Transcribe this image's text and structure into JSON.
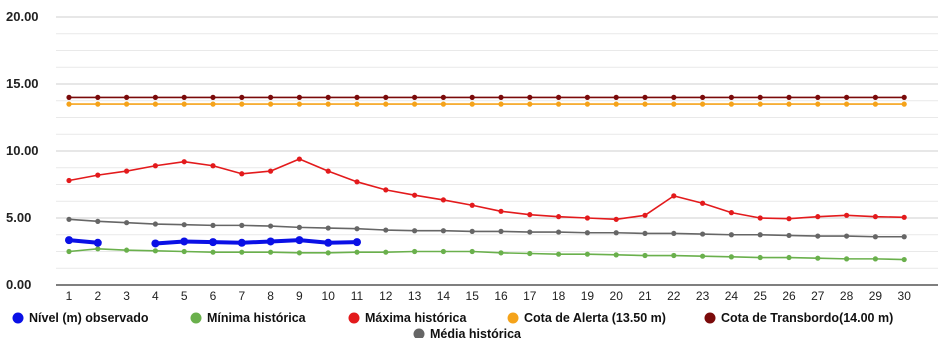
{
  "chart_data": {
    "type": "line",
    "title": "",
    "xlabel": "",
    "ylabel": "",
    "ylim": [
      0,
      20
    ],
    "yticks": [
      "0.00",
      "5.00",
      "10.00",
      "15.00",
      "20.00"
    ],
    "x": [
      1,
      2,
      3,
      4,
      5,
      6,
      7,
      8,
      9,
      10,
      11,
      12,
      13,
      14,
      15,
      16,
      17,
      18,
      19,
      20,
      21,
      22,
      23,
      24,
      25,
      26,
      27,
      28,
      29,
      30
    ],
    "grid": true,
    "legend_position": "bottom",
    "series": [
      {
        "name": "Nível (m) observado",
        "color": "#0a10e6",
        "values": [
          3.35,
          3.15,
          null,
          3.1,
          3.25,
          3.2,
          3.15,
          3.25,
          3.35,
          3.15,
          3.2,
          null,
          null,
          null,
          null,
          null,
          null,
          null,
          null,
          null,
          null,
          null,
          null,
          null,
          null,
          null,
          null,
          null,
          null,
          null
        ]
      },
      {
        "name": "Mínima histórica",
        "color": "#6ab04c",
        "values": [
          2.5,
          2.7,
          2.6,
          2.55,
          2.5,
          2.45,
          2.45,
          2.45,
          2.4,
          2.4,
          2.45,
          2.45,
          2.5,
          2.5,
          2.5,
          2.4,
          2.35,
          2.3,
          2.3,
          2.25,
          2.2,
          2.2,
          2.15,
          2.1,
          2.05,
          2.05,
          2.0,
          1.95,
          1.95,
          1.9
        ]
      },
      {
        "name": "Máxima histórica",
        "color": "#e31a1c",
        "values": [
          7.8,
          8.2,
          8.5,
          8.9,
          9.2,
          8.9,
          8.3,
          8.5,
          9.4,
          8.5,
          7.7,
          7.1,
          6.7,
          6.35,
          5.95,
          5.5,
          5.25,
          5.1,
          5.0,
          4.9,
          5.2,
          6.65,
          6.1,
          5.4,
          5.0,
          4.95,
          5.1,
          5.2,
          5.1,
          5.05
        ]
      },
      {
        "name": "Cota de Alerta (13.50 m)",
        "color": "#f5a31a",
        "values": [
          13.5,
          13.5,
          13.5,
          13.5,
          13.5,
          13.5,
          13.5,
          13.5,
          13.5,
          13.5,
          13.5,
          13.5,
          13.5,
          13.5,
          13.5,
          13.5,
          13.5,
          13.5,
          13.5,
          13.5,
          13.5,
          13.5,
          13.5,
          13.5,
          13.5,
          13.5,
          13.5,
          13.5,
          13.5,
          13.5
        ]
      },
      {
        "name": "Cota de Transbordo(14.00 m)",
        "color": "#7a0a0a",
        "values": [
          14,
          14,
          14,
          14,
          14,
          14,
          14,
          14,
          14,
          14,
          14,
          14,
          14,
          14,
          14,
          14,
          14,
          14,
          14,
          14,
          14,
          14,
          14,
          14,
          14,
          14,
          14,
          14,
          14,
          14
        ]
      },
      {
        "name": "Média histórica",
        "color": "#666666",
        "values": [
          4.9,
          4.75,
          4.65,
          4.55,
          4.5,
          4.45,
          4.45,
          4.4,
          4.3,
          4.25,
          4.2,
          4.1,
          4.05,
          4.05,
          4.0,
          4.0,
          3.95,
          3.95,
          3.9,
          3.9,
          3.85,
          3.85,
          3.8,
          3.75,
          3.75,
          3.7,
          3.65,
          3.65,
          3.6,
          3.6
        ]
      }
    ]
  }
}
